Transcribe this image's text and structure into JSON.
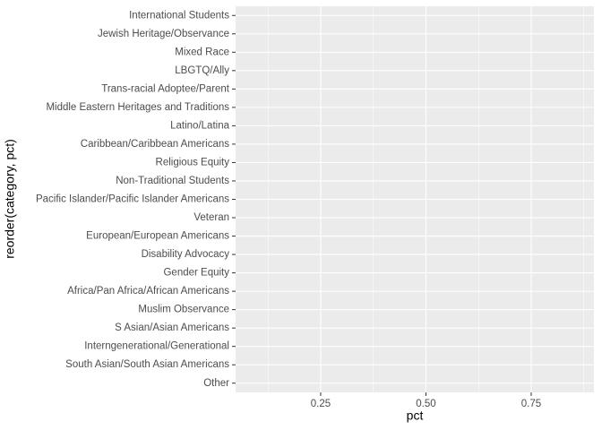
{
  "chart_data": {
    "type": "bar",
    "orientation": "horizontal",
    "categories": [
      "International Students",
      "Jewish Heritage/Observance",
      "Mixed Race",
      "LBGTQ/Ally",
      "Trans-racial Adoptee/Parent",
      "Middle Eastern Heritages and Traditions",
      "Latino/Latina",
      "Caribbean/Caribbean Americans",
      "Religious Equity",
      "Non-Traditional Students",
      "Pacific Islander/Pacific Islander Americans",
      "Veteran",
      "European/European Americans",
      "Disability Advocacy",
      "Gender Equity",
      "Africa/Pan Africa/African Americans",
      "Muslim Observance",
      "S Asian/Asian Americans",
      "Interngenerational/Generational",
      "South Asian/South Asian Americans",
      "Other"
    ],
    "x_label": "pct",
    "y_label": "reorder(category, pct)",
    "xlim": [
      0.048,
      0.899
    ],
    "xticks": [
      0.25,
      {
        "value": 0.5,
        "label": "0.50"
      },
      0.75
    ],
    "grid": true,
    "panel_color": "#ebebeb"
  }
}
